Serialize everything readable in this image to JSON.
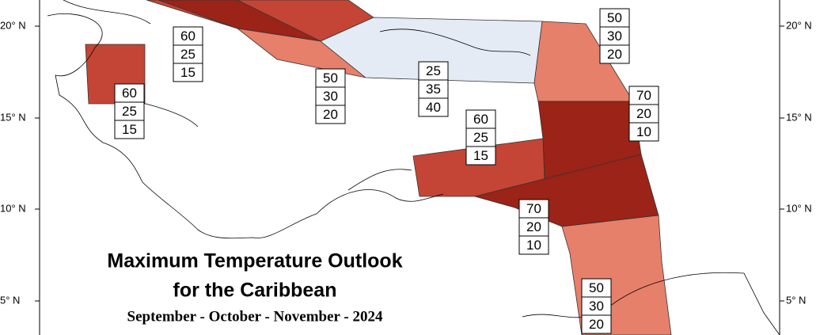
{
  "title": "Maximum Temperature Outlook",
  "title_line2": "for the Caribbean",
  "subtitle": "September - October - November - 2024",
  "lat_labels_left": [
    "20° N",
    "15° N",
    "10° N",
    "5° N"
  ],
  "lat_labels_right": [
    "20° N",
    "15° N",
    "10° N",
    "5° N"
  ],
  "regions": [
    {
      "probabilities": [
        60,
        25,
        15
      ]
    },
    {
      "probabilities": [
        60,
        25,
        15
      ]
    },
    {
      "probabilities": [
        50,
        30,
        20
      ]
    },
    {
      "probabilities": [
        25,
        35,
        40
      ]
    },
    {
      "probabilities": [
        60,
        25,
        15
      ]
    },
    {
      "probabilities": [
        50,
        30,
        20
      ]
    },
    {
      "probabilities": [
        70,
        20,
        10
      ]
    },
    {
      "probabilities": [
        70,
        20,
        10
      ]
    },
    {
      "probabilities": [
        50,
        30,
        20
      ]
    }
  ]
}
